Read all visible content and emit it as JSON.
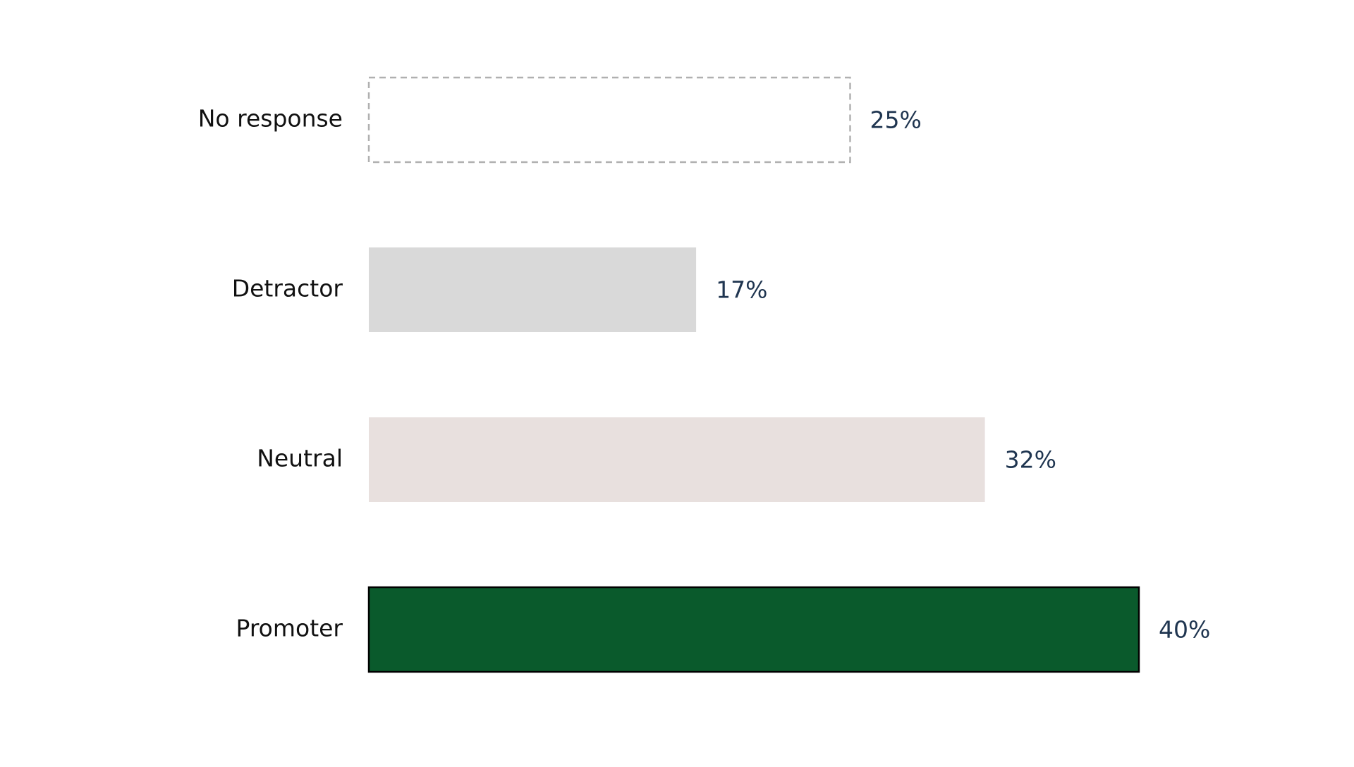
{
  "chart_data": {
    "type": "hbar",
    "categories": [
      "No response",
      "Detractor",
      "Neutral",
      "Promoter"
    ],
    "values": [
      25,
      17,
      32,
      40
    ],
    "value_labels": [
      "25%",
      "17%",
      "32%",
      "40%"
    ],
    "colors": [
      "#ffffff",
      "#d9d9d9",
      "#e8e0de",
      "#0a5a2c"
    ]
  }
}
